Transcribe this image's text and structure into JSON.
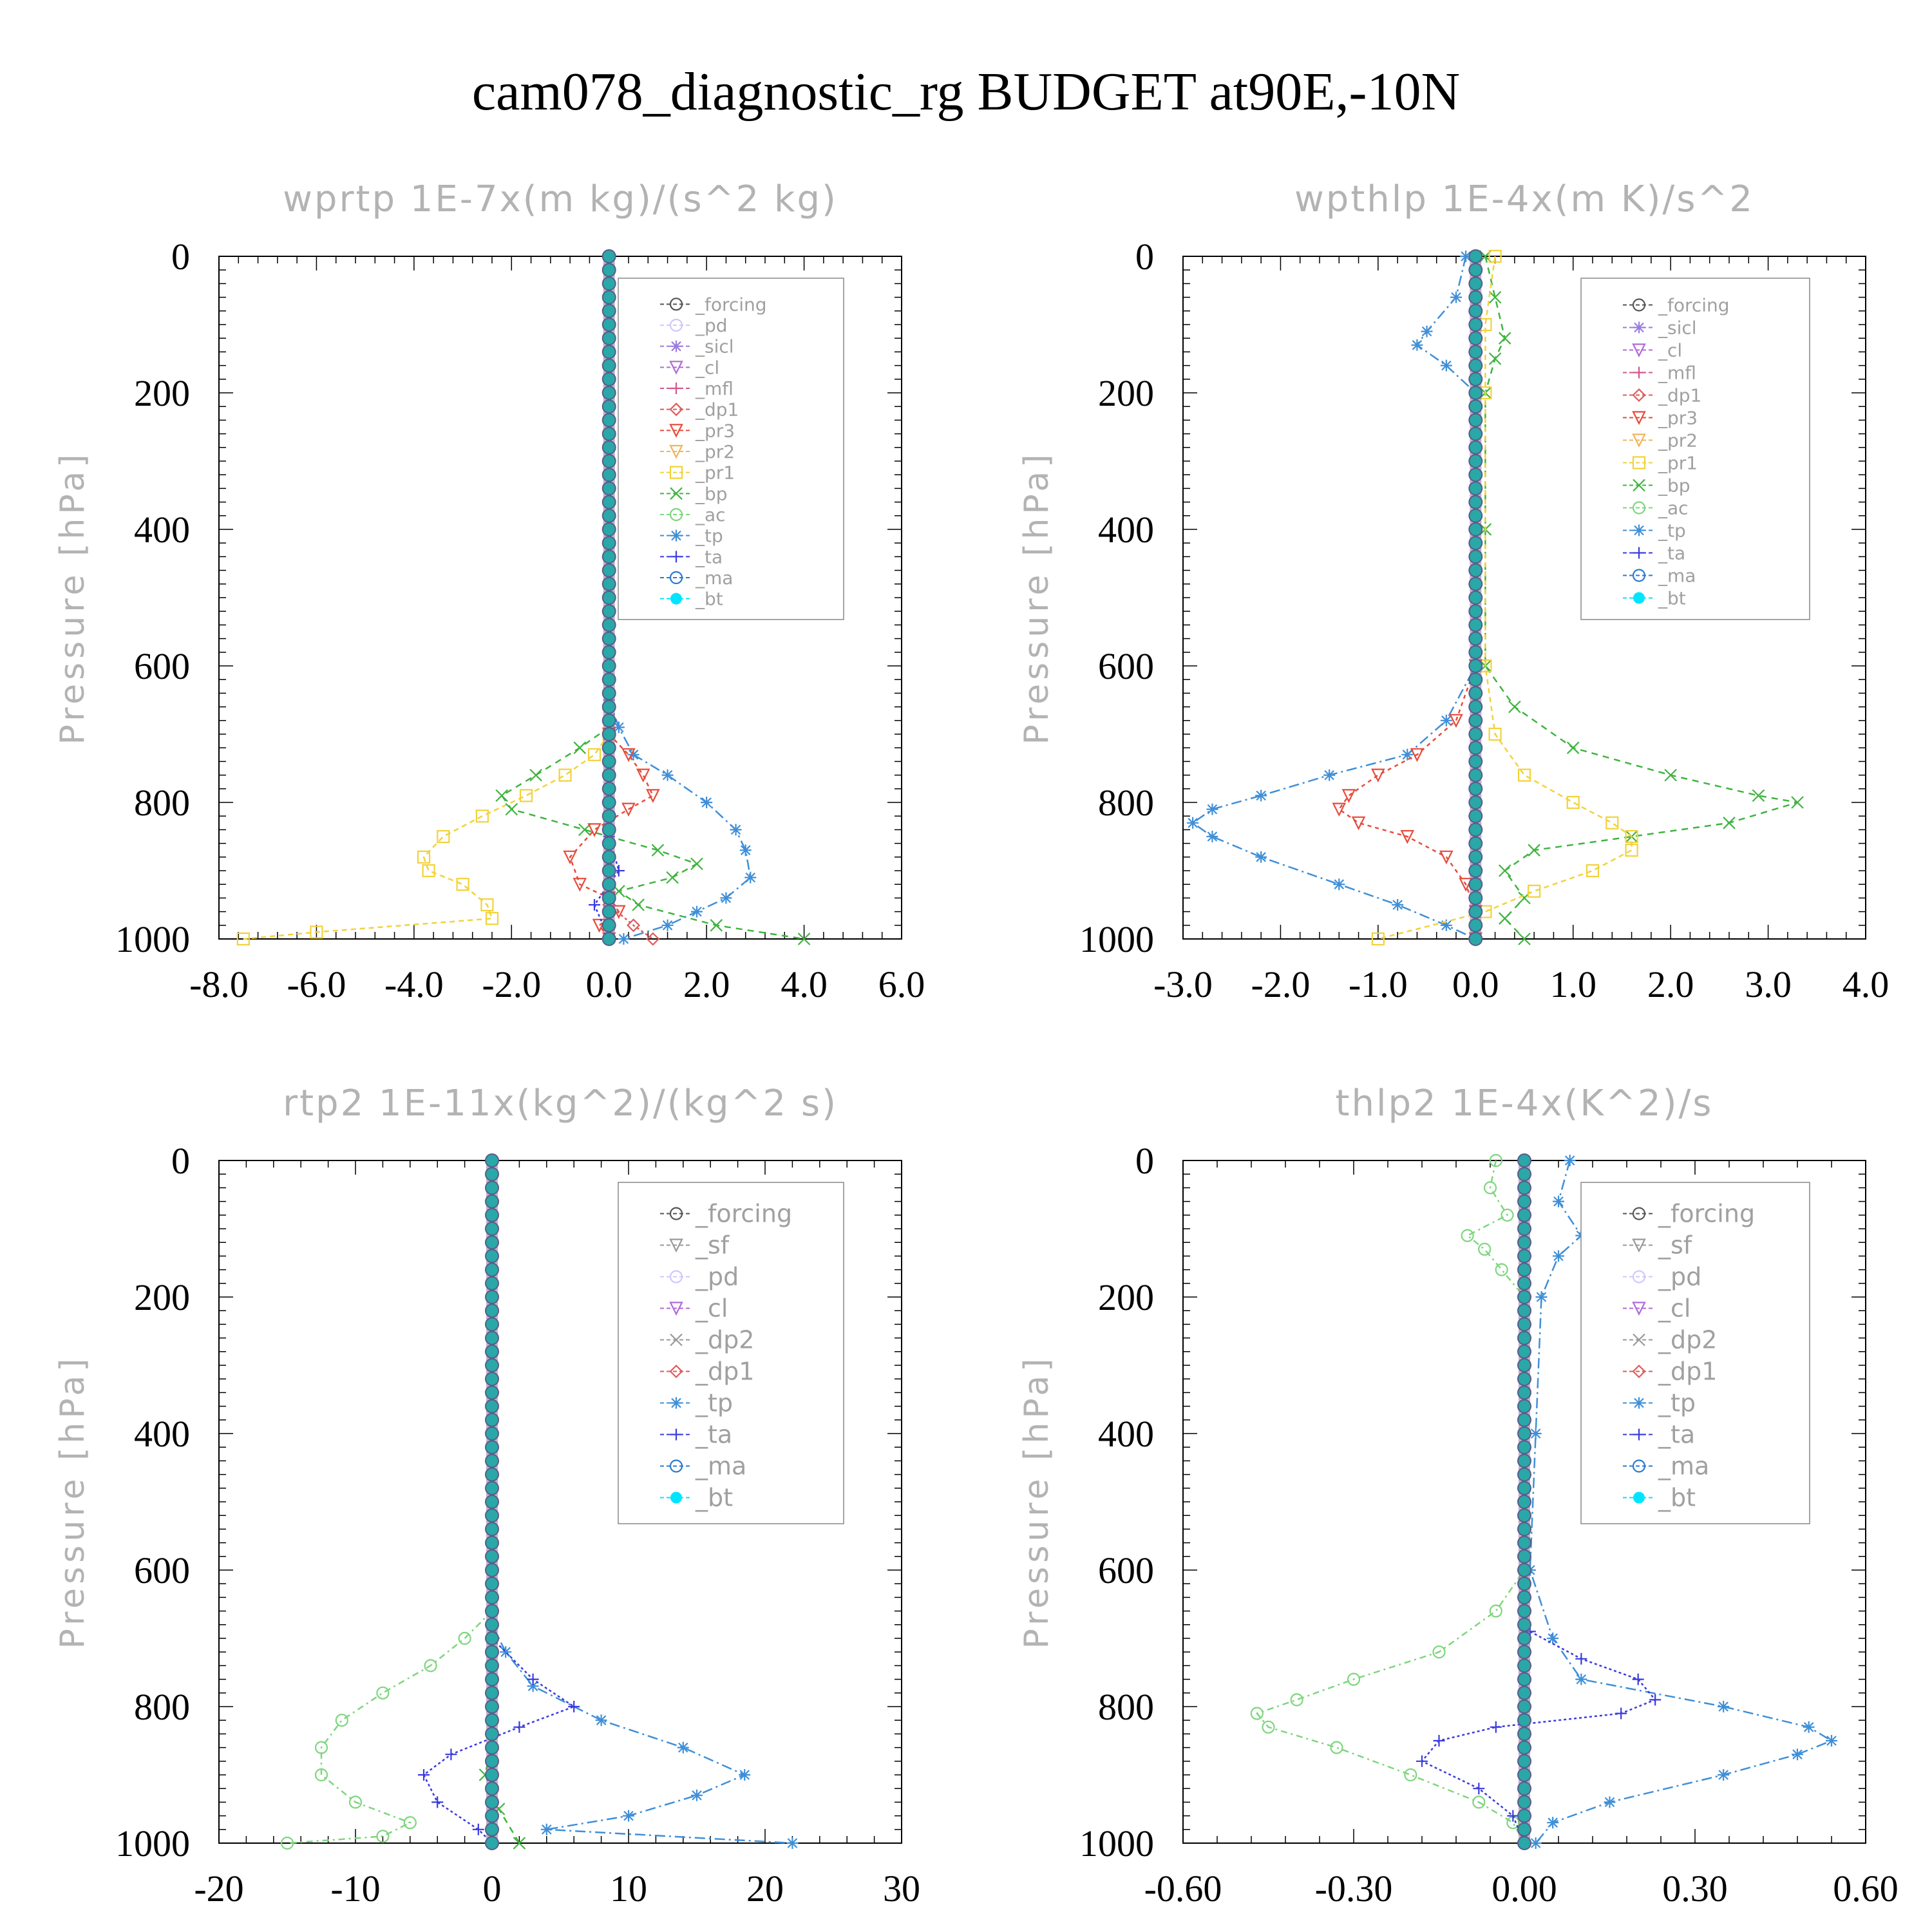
{
  "title": "cam078_diagnostic_rg  BUDGET at90E,-10N",
  "colors": {
    "_forcing": "#555555",
    "_pd": "#cfc7ff",
    "_sicl": "#9a7be0",
    "_cl": "#b06ad8",
    "_mfl": "#d0568c",
    "_dp1": "#e05a5a",
    "_pr3": "#e84a3a",
    "_pr2": "#f0b45a",
    "_pr1": "#f2d23a",
    "_bp": "#3fb43f",
    "_ac": "#7ed67e",
    "_tp": "#3f8fd8",
    "_ta": "#3a3ae0",
    "_ma": "#2a7ad0",
    "_bt": "#00e5ff"
  },
  "chart_data": [
    {
      "type": "line",
      "title": "wprtp  1E-7x(m kg)/(s^2 kg)",
      "ylabel": "Pressure [hPa]",
      "xlim": [
        -8.0,
        6.0
      ],
      "ylim": [
        1000,
        0
      ],
      "y_inverted": true,
      "xticks": [
        "-8.0",
        "-6.0",
        "-4.0",
        "-2.0",
        "0.0",
        "2.0",
        "4.0",
        "6.0"
      ],
      "yticks": [
        "0",
        "200",
        "400",
        "600",
        "800",
        "1000"
      ],
      "legend_position": "top-right",
      "legend": [
        "_forcing",
        "_pd",
        "_sicl",
        "_cl",
        "_mfl",
        "_dp1",
        "_pr3",
        "_pr2",
        "_pr1",
        "_bp",
        "_ac",
        "_tp",
        "_ta",
        "_ma",
        "_bt"
      ],
      "series": [
        {
          "name": "_pr1",
          "color": "#f2d23a",
          "marker": "square",
          "dash": "8,6",
          "y": [
            700,
            730,
            760,
            790,
            820,
            850,
            880,
            900,
            920,
            950,
            970,
            990,
            1000
          ],
          "x": [
            0,
            -0.3,
            -0.9,
            -1.7,
            -2.6,
            -3.4,
            -3.8,
            -3.7,
            -3.0,
            -2.5,
            -2.4,
            -6.0,
            -7.5
          ]
        },
        {
          "name": "_bp",
          "color": "#3fb43f",
          "marker": "x",
          "dash": "10,8",
          "y": [
            690,
            720,
            760,
            790,
            810,
            840,
            870,
            890,
            910,
            930,
            950,
            980,
            1000
          ],
          "x": [
            0,
            -0.6,
            -1.5,
            -2.2,
            -2.0,
            -0.5,
            1.0,
            1.8,
            1.3,
            0.2,
            0.6,
            2.2,
            4.0
          ]
        },
        {
          "name": "_tp",
          "color": "#3f8fd8",
          "marker": "asterisk",
          "dash": "16,6,3,6",
          "y": [
            650,
            690,
            730,
            760,
            800,
            840,
            870,
            910,
            940,
            960,
            980,
            1000
          ],
          "x": [
            0,
            0.2,
            0.5,
            1.2,
            2.0,
            2.6,
            2.8,
            2.9,
            2.4,
            1.8,
            1.2,
            0.3
          ]
        },
        {
          "name": "_pr3",
          "color": "#e84a3a",
          "marker": "triangle-down",
          "dash": "6,6",
          "y": [
            700,
            730,
            760,
            790,
            810,
            840,
            880,
            920,
            940,
            960,
            980,
            1000
          ],
          "x": [
            0,
            0.4,
            0.7,
            0.9,
            0.4,
            -0.3,
            -0.8,
            -0.6,
            0,
            0.2,
            -0.2,
            0
          ]
        },
        {
          "name": "_dp1",
          "color": "#e05a5a",
          "marker": "diamond",
          "dash": "4,4",
          "y": [
            950,
            980,
            1000
          ],
          "x": [
            0,
            0.5,
            0.9
          ]
        },
        {
          "name": "_ta",
          "color": "#3a3ae0",
          "marker": "plus",
          "dash": "4,4",
          "y": [
            850,
            900,
            950,
            1000
          ],
          "x": [
            0,
            0.2,
            -0.3,
            0
          ]
        },
        {
          "name": "_forcing",
          "color": "#555555",
          "marker": "bt-column",
          "dash": "",
          "y": [
            0,
            1000
          ],
          "x": [
            0,
            0
          ]
        }
      ]
    },
    {
      "type": "line",
      "title": "wpthlp  1E-4x(m K)/s^2",
      "ylabel": "Pressure [hPa]",
      "xlim": [
        -3.0,
        4.0
      ],
      "ylim": [
        1000,
        0
      ],
      "y_inverted": true,
      "xticks": [
        "-3.0",
        "-2.0",
        "-1.0",
        "0.0",
        "1.0",
        "2.0",
        "3.0",
        "4.0"
      ],
      "yticks": [
        "0",
        "200",
        "400",
        "600",
        "800",
        "1000"
      ],
      "legend_position": "top-right",
      "legend": [
        "_forcing",
        "_sicl",
        "_cl",
        "_mfl",
        "_dp1",
        "_pr3",
        "_pr2",
        "_pr1",
        "_bp",
        "_ac",
        "_tp",
        "_ta",
        "_ma",
        "_bt"
      ],
      "series": [
        {
          "name": "_bp",
          "color": "#3fb43f",
          "marker": "x",
          "dash": "10,8",
          "y": [
            0,
            60,
            120,
            150,
            200,
            400,
            600,
            660,
            720,
            760,
            790,
            800,
            830,
            850,
            870,
            900,
            940,
            970,
            1000
          ],
          "x": [
            0.1,
            0.2,
            0.3,
            0.2,
            0.1,
            0.1,
            0.1,
            0.4,
            1.0,
            2.0,
            2.9,
            3.3,
            2.6,
            1.6,
            0.6,
            0.3,
            0.5,
            0.3,
            0.5
          ]
        },
        {
          "name": "_tp",
          "color": "#3f8fd8",
          "marker": "asterisk",
          "dash": "16,6,3,6",
          "y": [
            0,
            60,
            110,
            130,
            160,
            200,
            400,
            600,
            680,
            730,
            760,
            790,
            810,
            830,
            850,
            880,
            920,
            950,
            980,
            1000
          ],
          "x": [
            -0.1,
            -0.2,
            -0.5,
            -0.6,
            -0.3,
            0,
            0,
            0,
            -0.3,
            -0.7,
            -1.5,
            -2.2,
            -2.7,
            -2.9,
            -2.7,
            -2.2,
            -1.4,
            -0.8,
            -0.3,
            0
          ]
        },
        {
          "name": "_pr1",
          "color": "#f2d23a",
          "marker": "square",
          "dash": "8,6",
          "y": [
            0,
            100,
            200,
            600,
            700,
            760,
            800,
            830,
            850,
            870,
            900,
            930,
            960,
            1000
          ],
          "x": [
            0.2,
            0.1,
            0.1,
            0.1,
            0.2,
            0.5,
            1.0,
            1.4,
            1.6,
            1.6,
            1.2,
            0.6,
            0.1,
            -1.0
          ]
        },
        {
          "name": "_pr3",
          "color": "#e84a3a",
          "marker": "triangle-down",
          "dash": "6,6",
          "y": [
            600,
            680,
            730,
            760,
            790,
            810,
            830,
            850,
            880,
            920,
            960,
            1000
          ],
          "x": [
            0,
            -0.2,
            -0.6,
            -1.0,
            -1.3,
            -1.4,
            -1.2,
            -0.7,
            -0.3,
            -0.1,
            0,
            0
          ]
        },
        {
          "name": "_forcing",
          "color": "#555555",
          "marker": "bt-column",
          "dash": "",
          "y": [
            0,
            1000
          ],
          "x": [
            0,
            0
          ]
        }
      ]
    },
    {
      "type": "line",
      "title": "rtp2  1E-11x(kg^2)/(kg^2 s)",
      "ylabel": "Pressure [hPa]",
      "xlim": [
        -20,
        30
      ],
      "ylim": [
        1000,
        0
      ],
      "y_inverted": true,
      "xticks": [
        "-20",
        "-10",
        "0",
        "10",
        "20",
        "30"
      ],
      "yticks": [
        "0",
        "200",
        "400",
        "600",
        "800",
        "1000"
      ],
      "legend_position": "top-right",
      "legend": [
        "_forcing",
        "_sf",
        "_pd",
        "_cl",
        "_dp2",
        "_dp1",
        "_tp",
        "_ta",
        "_ma",
        "_bt"
      ],
      "series": [
        {
          "name": "_dp1",
          "color": "#7ed67e",
          "marker": "circle",
          "dash": "10,6,3,6",
          "y": [
            660,
            700,
            740,
            780,
            820,
            860,
            900,
            940,
            970,
            990,
            1000
          ],
          "x": [
            0,
            -2,
            -4.5,
            -8,
            -11,
            -12.5,
            -12.5,
            -10,
            -6,
            -8,
            -15
          ]
        },
        {
          "name": "_tp",
          "color": "#3f8fd8",
          "marker": "asterisk",
          "dash": "16,6,3,6",
          "y": [
            680,
            720,
            770,
            820,
            860,
            900,
            930,
            960,
            980,
            1000
          ],
          "x": [
            0,
            1,
            3,
            8,
            14,
            18.5,
            15,
            10,
            4,
            22
          ]
        },
        {
          "name": "_ta",
          "color": "#3a3ae0",
          "marker": "plus",
          "dash": "4,4",
          "y": [
            700,
            760,
            800,
            830,
            870,
            900,
            940,
            980,
            1000
          ],
          "x": [
            0,
            3,
            6,
            2,
            -3,
            -5,
            -4,
            -1,
            0
          ]
        },
        {
          "name": "_dp2",
          "color": "#3fb43f",
          "marker": "x",
          "dash": "10,8",
          "y": [
            850,
            900,
            950,
            1000
          ],
          "x": [
            0,
            -0.5,
            0.5,
            2
          ]
        },
        {
          "name": "_forcing",
          "color": "#e05a5a",
          "marker": "bt-column",
          "dash": "",
          "y": [
            0,
            1000
          ],
          "x": [
            0,
            0
          ]
        }
      ]
    },
    {
      "type": "line",
      "title": "thlp2  1E-4x(K^2)/s",
      "ylabel": "Pressure [hPa]",
      "xlim": [
        -0.6,
        0.6
      ],
      "ylim": [
        1000,
        0
      ],
      "y_inverted": true,
      "xticks": [
        "-0.60",
        "-0.30",
        "0.00",
        "0.30",
        "0.60"
      ],
      "yticks": [
        "0",
        "200",
        "400",
        "600",
        "800",
        "1000"
      ],
      "legend_position": "top-right",
      "legend": [
        "_forcing",
        "_sf",
        "_pd",
        "_cl",
        "_dp2",
        "_dp1",
        "_tp",
        "_ta",
        "_ma",
        "_bt"
      ],
      "series": [
        {
          "name": "_dp1",
          "color": "#7ed67e",
          "marker": "circle",
          "dash": "10,6,3,6",
          "y": [
            0,
            40,
            80,
            110,
            130,
            160,
            200,
            400,
            600,
            660,
            720,
            760,
            790,
            810,
            830,
            860,
            900,
            940,
            970,
            1000
          ],
          "x": [
            -0.05,
            -0.06,
            -0.03,
            -0.1,
            -0.07,
            -0.04,
            0,
            0,
            0,
            -0.05,
            -0.15,
            -0.3,
            -0.4,
            -0.47,
            -0.45,
            -0.33,
            -0.2,
            -0.08,
            -0.02,
            0
          ]
        },
        {
          "name": "_tp",
          "color": "#3f8fd8",
          "marker": "asterisk",
          "dash": "16,6,3,6",
          "y": [
            0,
            60,
            110,
            140,
            200,
            400,
            600,
            700,
            760,
            800,
            830,
            850,
            870,
            900,
            940,
            970,
            1000
          ],
          "x": [
            0.08,
            0.06,
            0.1,
            0.06,
            0.03,
            0.02,
            0.01,
            0.05,
            0.1,
            0.35,
            0.5,
            0.54,
            0.48,
            0.35,
            0.15,
            0.05,
            0.02
          ]
        },
        {
          "name": "_ta",
          "color": "#3a3ae0",
          "marker": "plus",
          "dash": "4,4",
          "y": [
            690,
            730,
            760,
            790,
            810,
            830,
            850,
            880,
            920,
            960,
            1000
          ],
          "x": [
            0.01,
            0.1,
            0.2,
            0.23,
            0.17,
            -0.05,
            -0.15,
            -0.18,
            -0.08,
            -0.02,
            0
          ]
        },
        {
          "name": "_forcing",
          "color": "#e05a5a",
          "marker": "bt-column",
          "dash": "",
          "y": [
            0,
            1000
          ],
          "x": [
            0,
            0
          ]
        }
      ]
    }
  ]
}
